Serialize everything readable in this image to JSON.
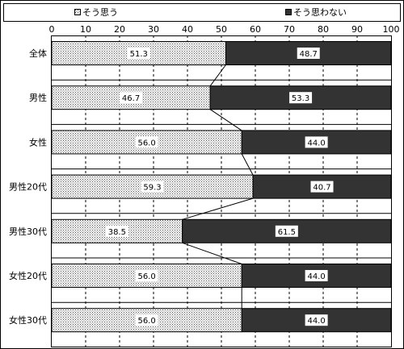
{
  "chart_data": {
    "type": "bar",
    "orientation": "horizontal",
    "stacked": true,
    "categories": [
      "全体",
      "男性",
      "女性",
      "男性20代",
      "男性30代",
      "女性20代",
      "女性30代"
    ],
    "series": [
      {
        "name": "そう思う",
        "values": [
          51.3,
          46.7,
          56.0,
          59.3,
          38.5,
          56.0,
          56.0
        ],
        "labels": [
          "51.3",
          "46.7",
          "56.0",
          "59.3",
          "38.5",
          "56.0",
          "56.0"
        ],
        "color": "#ffffff",
        "pattern": "dots"
      },
      {
        "name": "そう思わない",
        "values": [
          48.7,
          53.3,
          44.0,
          40.7,
          61.5,
          44.0,
          44.0
        ],
        "labels": [
          "48.7",
          "53.3",
          "44.0",
          "40.7",
          "61.5",
          "44.0",
          "44.0"
        ],
        "color": "#333333"
      }
    ],
    "xlim": [
      0,
      100
    ],
    "xticks": [
      "0",
      "10",
      "20",
      "30",
      "40",
      "50",
      "60",
      "70",
      "80",
      "90",
      "100"
    ],
    "grid": "vertical dashed",
    "legend": "top",
    "series_lines": true
  }
}
